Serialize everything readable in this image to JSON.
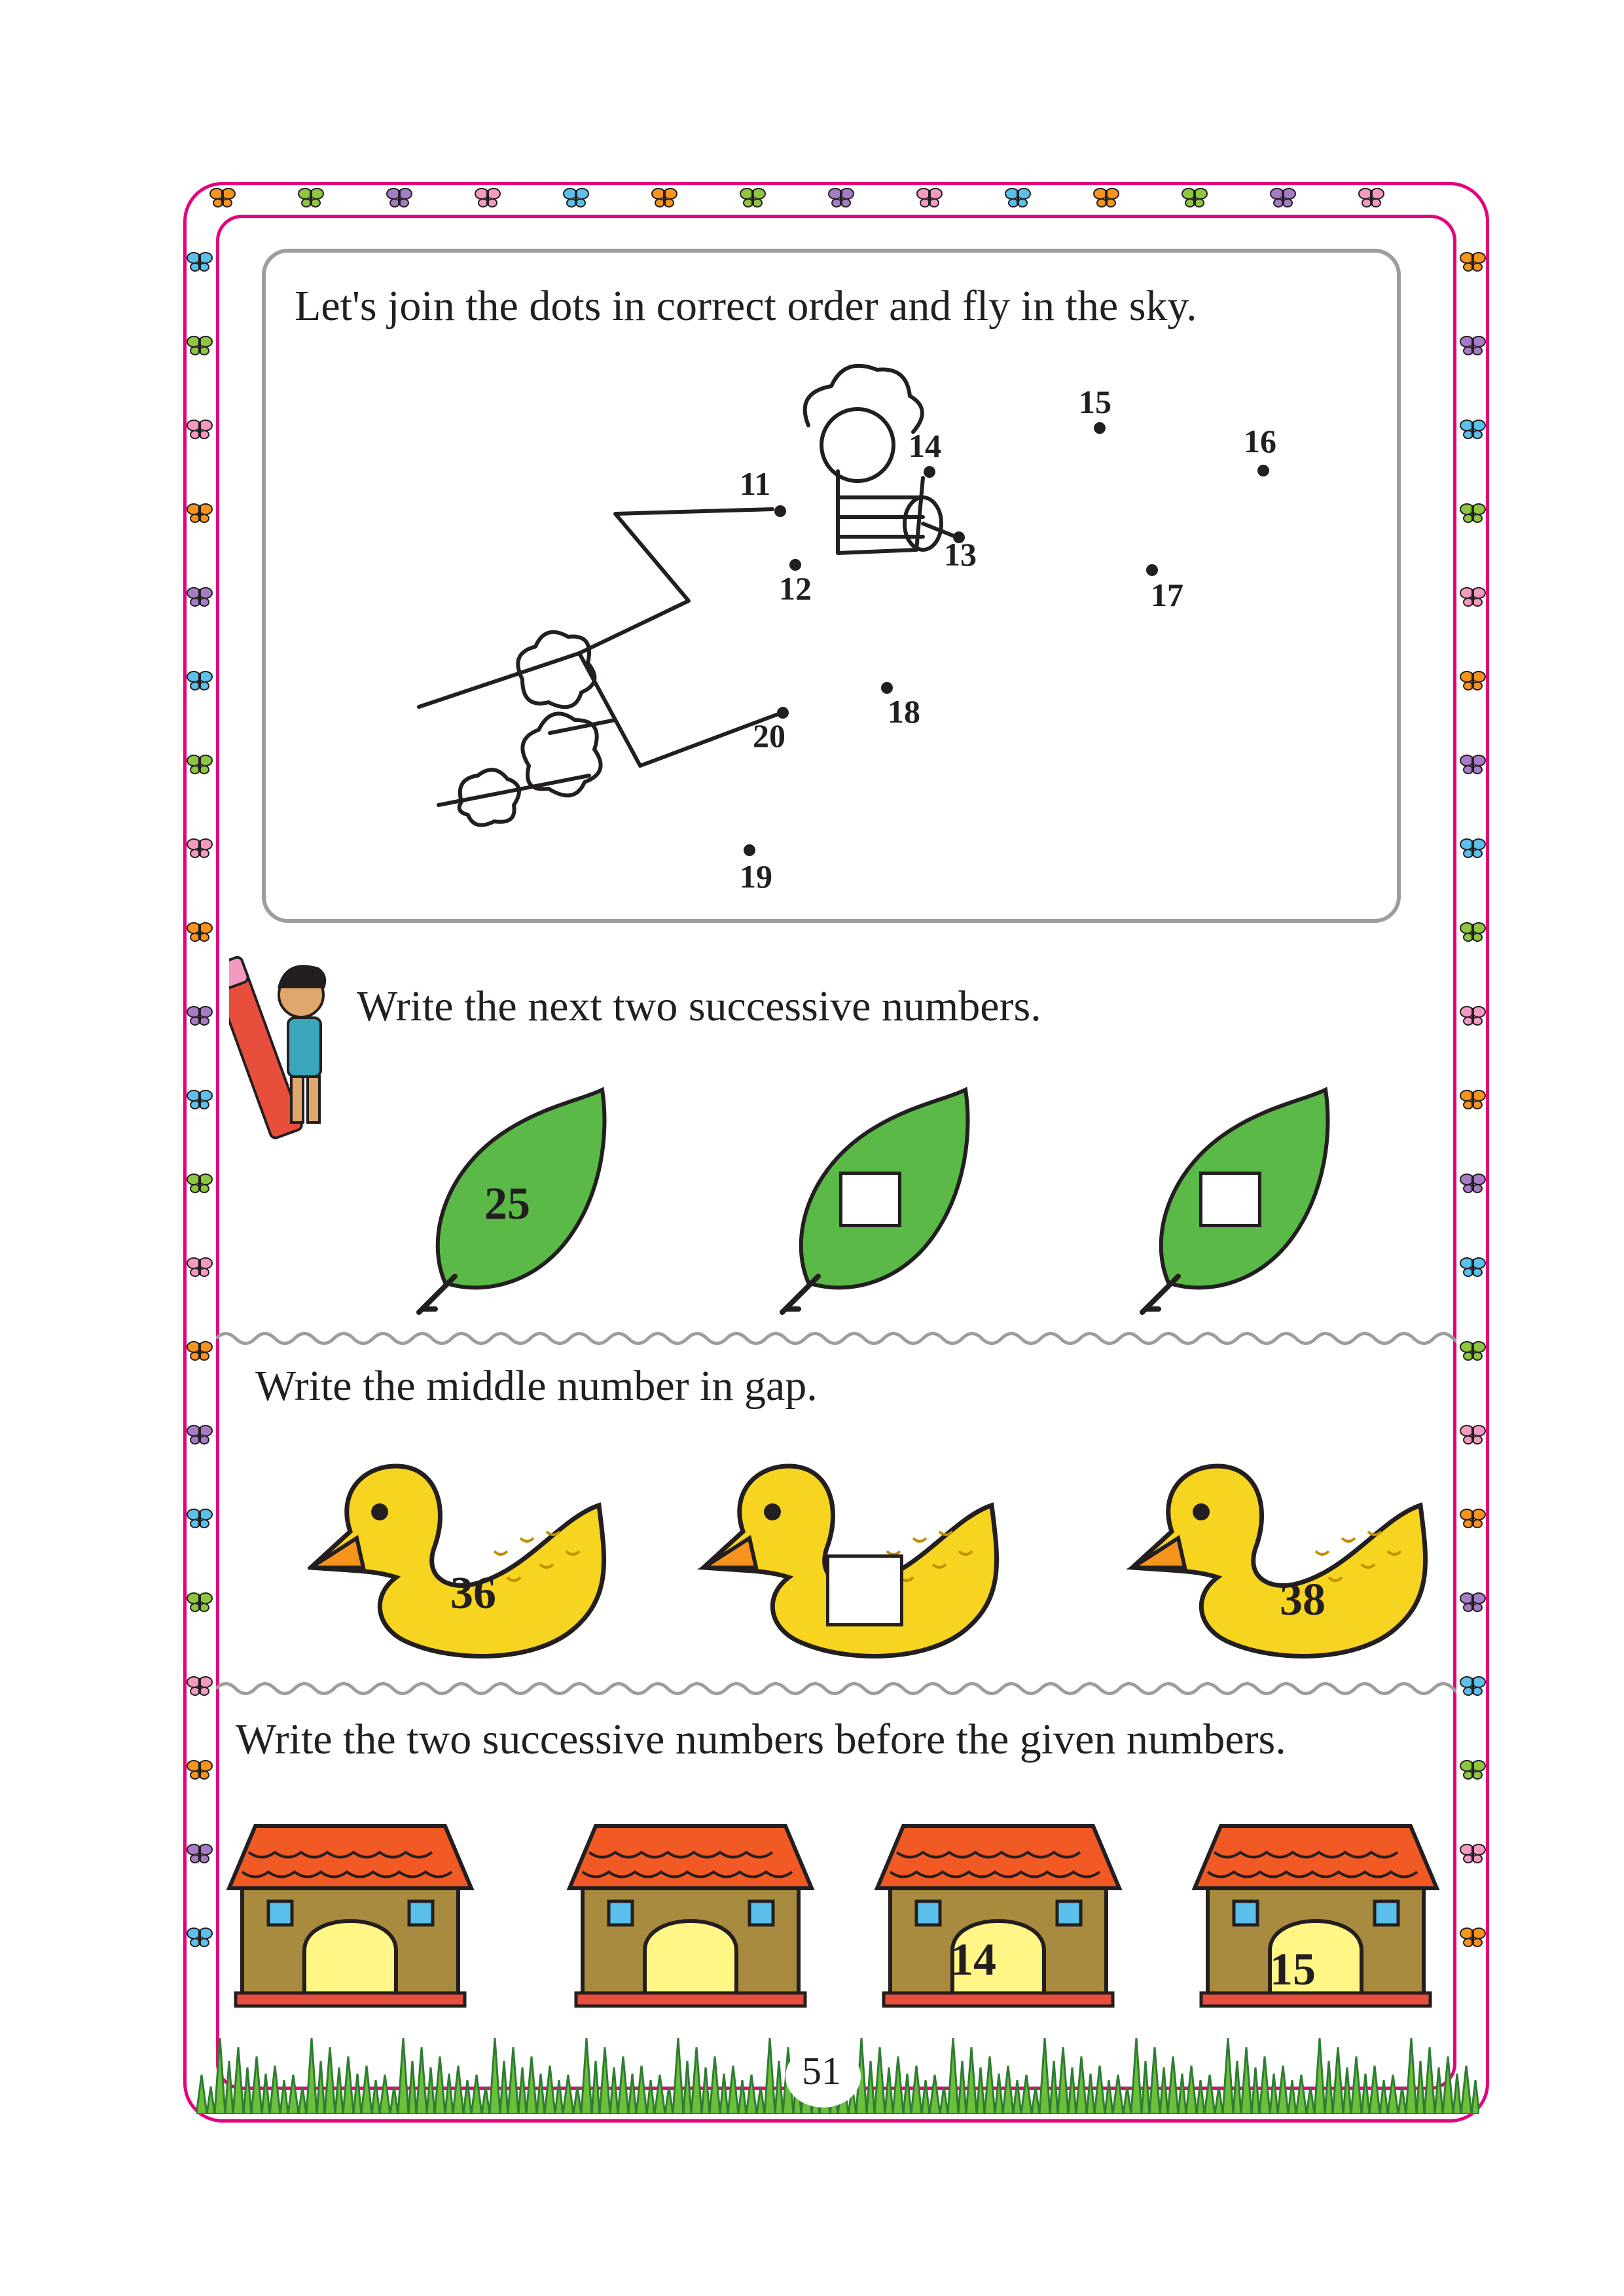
{
  "colors": {
    "border": "#e6007e",
    "panel_border": "#9d9d9c",
    "leaf": "#5bb947",
    "duck": "#f7d41f",
    "roof": "#f15a24",
    "wall": "#a98b3f",
    "door": "#fff685",
    "grass": "#6bbf3a"
  },
  "section1": {
    "instruction": "Let's join the dots in correct order and fly in the sky.",
    "dots": [
      {
        "label": "11"
      },
      {
        "label": "12"
      },
      {
        "label": "13"
      },
      {
        "label": "14"
      },
      {
        "label": "15"
      },
      {
        "label": "16"
      },
      {
        "label": "17"
      },
      {
        "label": "18"
      },
      {
        "label": "19"
      },
      {
        "label": "20"
      }
    ]
  },
  "section2": {
    "instruction": "Write the next two successive numbers.",
    "leaves": [
      {
        "value": "25"
      },
      {
        "value": ""
      },
      {
        "value": ""
      }
    ]
  },
  "section3": {
    "instruction": "Write the middle number in gap.",
    "ducks": [
      {
        "value": "36"
      },
      {
        "value": ""
      },
      {
        "value": "38"
      }
    ]
  },
  "section4": {
    "instruction": "Write the two successive numbers before the given numbers.",
    "houses": [
      {
        "value": ""
      },
      {
        "value": ""
      },
      {
        "value": "14"
      },
      {
        "value": "15"
      }
    ]
  },
  "page_number": "51"
}
